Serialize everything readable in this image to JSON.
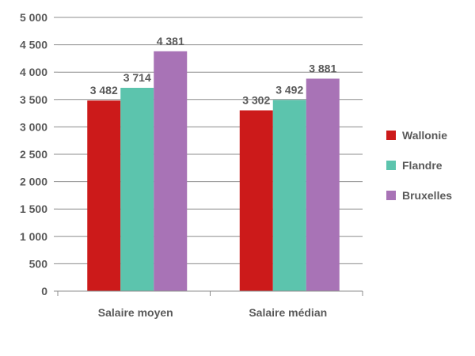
{
  "chart_data": {
    "type": "bar",
    "categories": [
      "Salaire moyen",
      "Salaire médian"
    ],
    "series": [
      {
        "name": "Wallonie",
        "color": "#cc1a1a",
        "values": [
          3482,
          3302
        ],
        "labels": [
          "3 482",
          "3 302"
        ]
      },
      {
        "name": "Flandre",
        "color": "#5cc4ad",
        "values": [
          3714,
          3492
        ],
        "labels": [
          "3 714",
          "3 492"
        ]
      },
      {
        "name": "Bruxelles",
        "color": "#a873b6",
        "values": [
          4381,
          3881
        ],
        "labels": [
          "4 381",
          "3 881"
        ]
      }
    ],
    "ylim": [
      0,
      5000
    ],
    "yticks": [
      0,
      500,
      1000,
      1500,
      2000,
      2500,
      3000,
      3500,
      4000,
      4500,
      5000
    ],
    "ytick_labels": [
      "0",
      "500",
      "1 000",
      "1 500",
      "2 000",
      "2 500",
      "3 000",
      "3 500",
      "4 000",
      "4 500",
      "5 000"
    ],
    "grid": true,
    "legend": "right",
    "title": "",
    "xlabel": "",
    "ylabel": ""
  }
}
